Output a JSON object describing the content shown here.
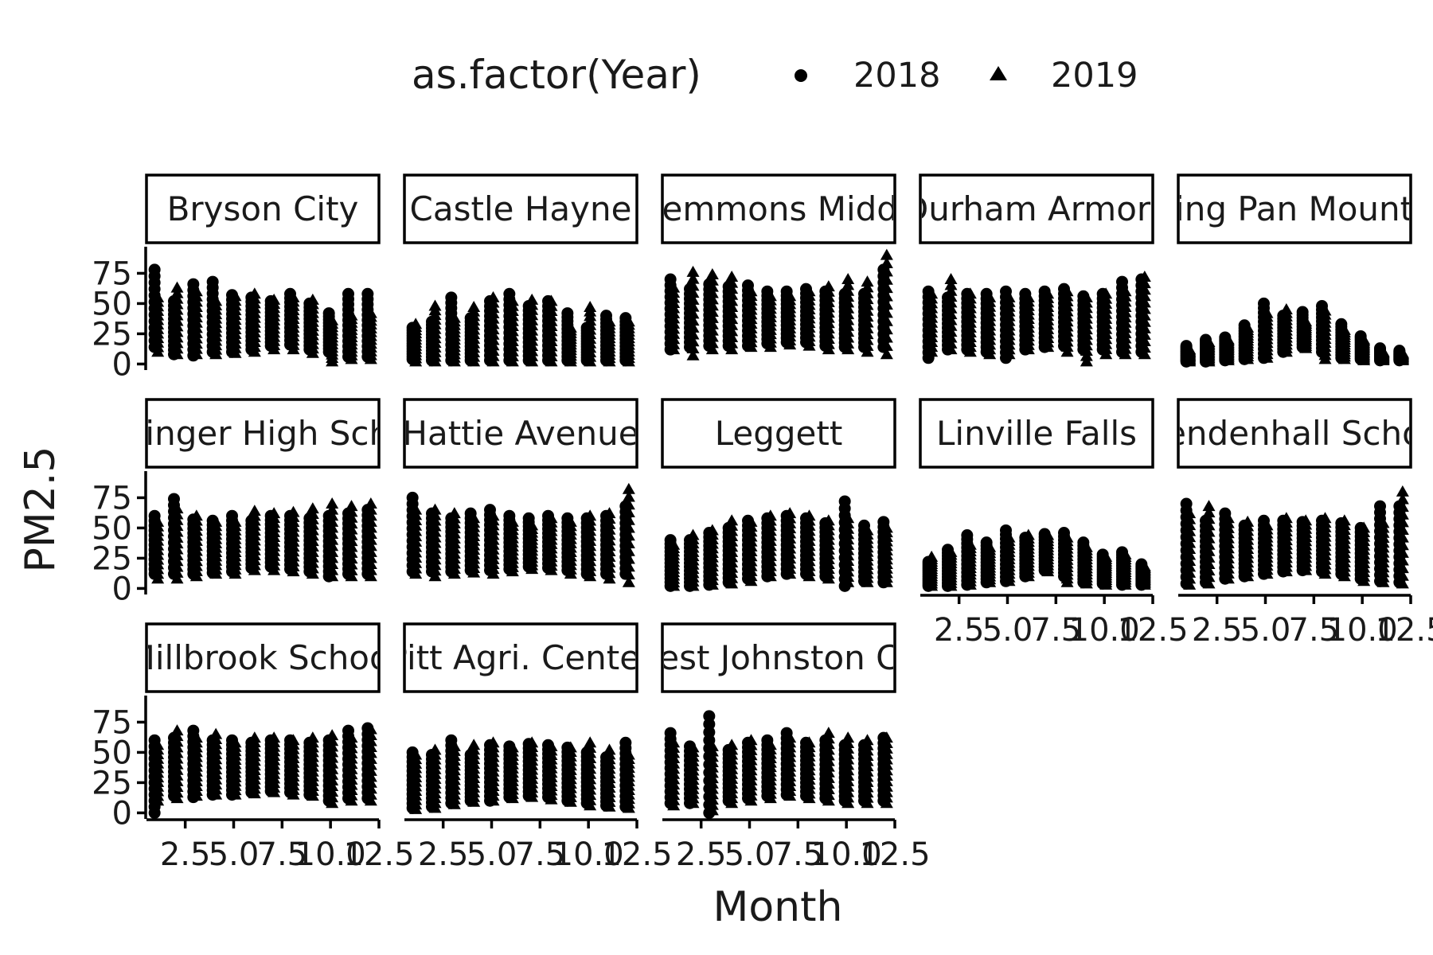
{
  "chart_data": {
    "type": "scatter",
    "title": "",
    "xlabel": "Month",
    "ylabel": "PM2.5",
    "xlim": [
      0.5,
      12.5
    ],
    "ylim": [
      -5,
      97
    ],
    "x_ticks": [
      2.5,
      5.0,
      7.5,
      10.0,
      12.5
    ],
    "x_tick_labels": [
      "2.5",
      "5.0",
      "7.5",
      "10.0",
      "12.5"
    ],
    "y_ticks": [
      0,
      25,
      50,
      75
    ],
    "y_tick_labels": [
      "0",
      "25",
      "50",
      "75"
    ],
    "legend": {
      "title": "as.factor(Year)",
      "placement": "top",
      "entries": [
        {
          "label": "2018",
          "shape": "circle"
        },
        {
          "label": "2019",
          "shape": "triangle"
        }
      ]
    },
    "point_color": "#000000",
    "facets": [
      {
        "label": "Bryson City",
        "series": [
          {
            "name": "2018",
            "min": [
              14,
              8,
              7,
              10,
              10,
              12,
              15,
              16,
              12,
              10,
              6,
              6
            ],
            "max": [
              78,
              52,
              66,
              68,
              57,
              55,
              52,
              58,
              50,
              42,
              58,
              58
            ]
          },
          {
            "name": "2019",
            "min": [
              10,
              8,
              8,
              8,
              9,
              10,
              12,
              12,
              9,
              2,
              4,
              4
            ],
            "max": [
              55,
              63,
              60,
              52,
              56,
              58,
              53,
              55,
              53,
              36,
              40,
              42
            ]
          }
        ]
      },
      {
        "label": "Castle Hayne",
        "series": [
          {
            "name": "2018",
            "min": [
              4,
              3,
              3,
              3,
              3,
              3,
              3,
              3,
              3,
              3,
              3,
              3
            ],
            "max": [
              30,
              35,
              55,
              38,
              52,
              58,
              48,
              52,
              42,
              30,
              40,
              38
            ]
          },
          {
            "name": "2019",
            "min": [
              2,
              2,
              2,
              2,
              2,
              2,
              2,
              2,
              2,
              2,
              2,
              2
            ],
            "max": [
              33,
              48,
              38,
              47,
              55,
              52,
              53,
              52,
              30,
              47,
              35,
              35
            ]
          }
        ]
      },
      {
        "label": "Clemmons Middle",
        "series": [
          {
            "name": "2018",
            "min": [
              12,
              14,
              15,
              15,
              15,
              17,
              18,
              18,
              15,
              14,
              14,
              14
            ],
            "max": [
              70,
              62,
              66,
              64,
              65,
              60,
              60,
              62,
              60,
              58,
              58,
              78
            ]
          },
          {
            "name": "2019",
            "min": [
              12,
              7,
              12,
              12,
              14,
              14,
              16,
              15,
              12,
              12,
              10,
              8
            ],
            "max": [
              63,
              76,
              74,
              72,
              60,
              56,
              56,
              60,
              64,
              70,
              68,
              90
            ]
          }
        ]
      },
      {
        "label": "Durham Armory",
        "series": [
          {
            "name": "2018",
            "min": [
              5,
              12,
              12,
              10,
              5,
              12,
              14,
              15,
              12,
              12,
              10,
              10
            ],
            "max": [
              60,
              55,
              58,
              58,
              60,
              58,
              60,
              62,
              56,
              58,
              68,
              70
            ]
          },
          {
            "name": "2019",
            "min": [
              10,
              12,
              10,
              8,
              8,
              12,
              14,
              10,
              2,
              8,
              8,
              8
            ],
            "max": [
              58,
              70,
              58,
              55,
              55,
              55,
              58,
              60,
              55,
              58,
              60,
              72
            ]
          }
        ]
      },
      {
        "label": "Frying Pan Mountain",
        "series": [
          {
            "name": "2018",
            "min": [
              2,
              2,
              3,
              4,
              5,
              10,
              14,
              10,
              5,
              4,
              3,
              3
            ],
            "max": [
              15,
              20,
              22,
              32,
              50,
              40,
              43,
              48,
              33,
              23,
              13,
              11
            ]
          },
          {
            "name": "2019",
            "min": [
              2,
              2,
              3,
              4,
              5,
              10,
              13,
              4,
              4,
              3,
              3,
              3
            ],
            "max": [
              12,
              18,
              20,
              30,
              42,
              45,
              35,
              44,
              28,
              20,
              10,
              9
            ]
          }
        ]
      },
      {
        "label": "Garinger High School",
        "series": [
          {
            "name": "2018",
            "min": [
              12,
              12,
              12,
              13,
              14,
              17,
              18,
              16,
              14,
              10,
              12,
              12
            ],
            "max": [
              60,
              74,
              57,
              56,
              60,
              56,
              60,
              60,
              58,
              60,
              62,
              65
            ]
          },
          {
            "name": "2019",
            "min": [
              8,
              8,
              10,
              12,
              12,
              15,
              15,
              14,
              12,
              10,
              10,
              10
            ],
            "max": [
              55,
              66,
              60,
              55,
              55,
              64,
              62,
              63,
              66,
              70,
              68,
              70
            ]
          }
        ]
      },
      {
        "label": "Hattie Avenue",
        "series": [
          {
            "name": "2018",
            "min": [
              14,
              14,
              14,
              15,
              15,
              16,
              18,
              17,
              15,
              12,
              12,
              12
            ],
            "max": [
              75,
              62,
              58,
              62,
              65,
              60,
              58,
              60,
              58,
              58,
              60,
              68
            ]
          },
          {
            "name": "2019",
            "min": [
              12,
              10,
              12,
              13,
              12,
              14,
              16,
              15,
              12,
              10,
              8,
              5
            ],
            "max": [
              65,
              65,
              62,
              58,
              60,
              55,
              52,
              58,
              55,
              60,
              62,
              82
            ]
          }
        ]
      },
      {
        "label": "Leggett",
        "series": [
          {
            "name": "2018",
            "min": [
              2,
              2,
              3,
              5,
              8,
              10,
              12,
              12,
              10,
              2,
              6,
              5
            ],
            "max": [
              40,
              40,
              46,
              50,
              56,
              58,
              60,
              58,
              54,
              72,
              52,
              55
            ]
          },
          {
            "name": "2019",
            "min": [
              2,
              2,
              3,
              4,
              6,
              10,
              12,
              10,
              8,
              5,
              5,
              5
            ],
            "max": [
              36,
              44,
              48,
              56,
              55,
              60,
              62,
              60,
              56,
              58,
              48,
              50
            ]
          }
        ]
      },
      {
        "label": "Linville Falls",
        "series": [
          {
            "name": "2018",
            "min": [
              2,
              2,
              3,
              5,
              6,
              10,
              15,
              10,
              5,
              4,
              3,
              3
            ],
            "max": [
              22,
              32,
              44,
              38,
              48,
              42,
              45,
              46,
              38,
              28,
              30,
              20
            ]
          },
          {
            "name": "2019",
            "min": [
              2,
              2,
              3,
              5,
              6,
              10,
              14,
              5,
              4,
              3,
              3,
              3
            ],
            "max": [
              26,
              30,
              36,
              34,
              42,
              44,
              44,
              42,
              34,
              26,
              28,
              18
            ]
          }
        ]
      },
      {
        "label": "Mendenhall School",
        "series": [
          {
            "name": "2018",
            "min": [
              4,
              5,
              8,
              10,
              12,
              14,
              15,
              14,
              12,
              8,
              6,
              5
            ],
            "max": [
              70,
              56,
              62,
              52,
              56,
              56,
              55,
              56,
              54,
              50,
              68,
              68
            ]
          },
          {
            "name": "2019",
            "min": [
              3,
              4,
              8,
              10,
              12,
              14,
              15,
              12,
              10,
              6,
              5,
              4
            ],
            "max": [
              62,
              68,
              58,
              55,
              52,
              58,
              56,
              58,
              56,
              50,
              54,
              80
            ]
          }
        ]
      },
      {
        "label": "Millbrook School",
        "series": [
          {
            "name": "2018",
            "min": [
              0,
              14,
              13,
              15,
              15,
              17,
              18,
              17,
              15,
              10,
              12,
              12
            ],
            "max": [
              60,
              62,
              68,
              60,
              60,
              58,
              60,
              60,
              58,
              60,
              68,
              70
            ]
          },
          {
            "name": "2019",
            "min": [
              10,
              12,
              14,
              15,
              15,
              16,
              17,
              15,
              14,
              8,
              10,
              10
            ],
            "max": [
              56,
              68,
              62,
              65,
              58,
              62,
              62,
              60,
              62,
              64,
              62,
              69
            ]
          }
        ]
      },
      {
        "label": "Pitt Agri. Center",
        "series": [
          {
            "name": "2018",
            "min": [
              4,
              5,
              8,
              10,
              10,
              13,
              14,
              13,
              10,
              8,
              6,
              5
            ],
            "max": [
              50,
              48,
              60,
              48,
              56,
              55,
              57,
              56,
              54,
              50,
              46,
              58
            ]
          },
          {
            "name": "2019",
            "min": [
              3,
              4,
              7,
              9,
              10,
              12,
              13,
              11,
              9,
              6,
              5,
              4
            ],
            "max": [
              48,
              52,
              55,
              56,
              58,
              54,
              58,
              55,
              54,
              58,
              52,
              48
            ]
          }
        ]
      },
      {
        "label": "West Johnston Co.",
        "series": [
          {
            "name": "2018",
            "min": [
              8,
              8,
              0,
              10,
              12,
              14,
              15,
              14,
              12,
              10,
              10,
              10
            ],
            "max": [
              66,
              55,
              80,
              52,
              58,
              60,
              66,
              58,
              60,
              56,
              56,
              62
            ]
          },
          {
            "name": "2019",
            "min": [
              6,
              8,
              2,
              8,
              10,
              12,
              14,
              12,
              10,
              8,
              8,
              8
            ],
            "max": [
              58,
              54,
              55,
              56,
              60,
              56,
              62,
              58,
              66,
              62,
              60,
              62
            ]
          }
        ]
      }
    ]
  }
}
